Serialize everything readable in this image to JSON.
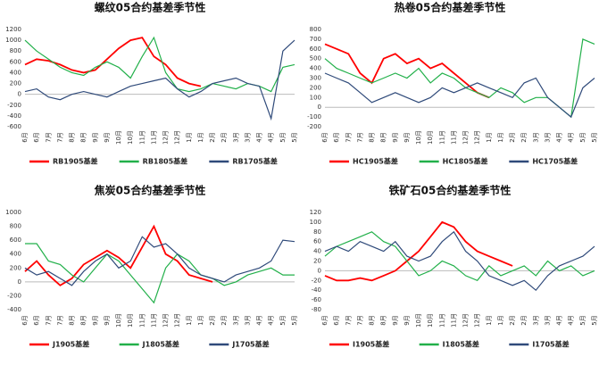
{
  "chart_data": [
    {
      "type": "line",
      "title": "螺纹05合约基差季节性",
      "categories": [
        "6月",
        "6月",
        "7月",
        "7月",
        "8月",
        "8月",
        "9月",
        "9月",
        "10月",
        "10月",
        "11月",
        "11月",
        "12月",
        "12月",
        "1月",
        "1月",
        "2月",
        "2月",
        "3月",
        "3月",
        "4月",
        "4月",
        "5月",
        "5月"
      ],
      "ylim": [
        -600,
        1200
      ],
      "yticks": [
        -600,
        -400,
        -200,
        0,
        200,
        400,
        600,
        800,
        1000,
        1200
      ],
      "series": [
        {
          "name": "RB1905基差",
          "color": "#ff0000",
          "values": [
            550,
            650,
            620,
            550,
            450,
            400,
            450,
            650,
            850,
            1000,
            1050,
            700,
            550,
            300,
            200,
            150,
            null,
            null,
            null,
            null,
            null,
            null,
            null,
            null
          ]
        },
        {
          "name": "RB1805基差",
          "color": "#22b04a",
          "values": [
            1000,
            800,
            650,
            500,
            400,
            350,
            500,
            600,
            500,
            300,
            700,
            1050,
            400,
            100,
            50,
            100,
            200,
            150,
            100,
            200,
            150,
            50,
            500,
            550
          ]
        },
        {
          "name": "RB1705基差",
          "color": "#2f4a7a",
          "values": [
            50,
            100,
            -50,
            -100,
            0,
            50,
            0,
            -50,
            50,
            150,
            200,
            250,
            300,
            100,
            -50,
            50,
            200,
            250,
            300,
            200,
            150,
            -450,
            800,
            1000
          ]
        }
      ]
    },
    {
      "type": "line",
      "title": "热卷05合约基差季节性",
      "categories": [
        "6月",
        "6月",
        "7月",
        "7月",
        "8月",
        "8月",
        "9月",
        "9月",
        "10月",
        "10月",
        "11月",
        "11月",
        "12月",
        "12月",
        "1月",
        "1月",
        "2月",
        "2月",
        "3月",
        "3月",
        "4月",
        "4月",
        "5月",
        "5月"
      ],
      "ylim": [
        -200,
        800
      ],
      "yticks": [
        -200,
        -100,
        0,
        100,
        200,
        300,
        400,
        500,
        600,
        700,
        800
      ],
      "series": [
        {
          "name": "HC1905基差",
          "color": "#ff0000",
          "values": [
            650,
            600,
            550,
            350,
            250,
            500,
            550,
            450,
            500,
            400,
            450,
            350,
            250,
            150,
            100,
            null,
            null,
            null,
            null,
            null,
            null,
            null,
            null,
            null
          ]
        },
        {
          "name": "HC1805基差",
          "color": "#22b04a",
          "values": [
            500,
            400,
            350,
            300,
            250,
            300,
            350,
            300,
            400,
            250,
            350,
            300,
            200,
            150,
            100,
            200,
            150,
            50,
            100,
            100,
            0,
            -100,
            700,
            650
          ]
        },
        {
          "name": "HC1705基差",
          "color": "#2f4a7a",
          "values": [
            350,
            300,
            250,
            150,
            50,
            100,
            150,
            100,
            50,
            100,
            200,
            150,
            200,
            250,
            200,
            150,
            100,
            250,
            300,
            100,
            0,
            -100,
            200,
            300
          ]
        }
      ]
    },
    {
      "type": "line",
      "title": "焦炭05合约基差季节性",
      "categories": [
        "6月",
        "6月",
        "7月",
        "7月",
        "8月",
        "8月",
        "9月",
        "9月",
        "10月",
        "10月",
        "11月",
        "11月",
        "12月",
        "12月",
        "1月",
        "1月",
        "2月",
        "2月",
        "3月",
        "3月",
        "4月",
        "4月",
        "5月",
        "5月"
      ],
      "ylim": [
        -400,
        1000
      ],
      "yticks": [
        -400,
        -200,
        0,
        200,
        400,
        600,
        800,
        1000
      ],
      "series": [
        {
          "name": "J1905基差",
          "color": "#ff0000",
          "values": [
            150,
            300,
            100,
            -50,
            50,
            250,
            350,
            450,
            350,
            200,
            500,
            800,
            400,
            300,
            100,
            50,
            0,
            null,
            null,
            null,
            null,
            null,
            null,
            null
          ]
        },
        {
          "name": "J1805基差",
          "color": "#22b04a",
          "values": [
            550,
            550,
            300,
            250,
            100,
            0,
            200,
            400,
            300,
            100,
            -100,
            -300,
            200,
            400,
            300,
            100,
            50,
            -50,
            0,
            100,
            150,
            200,
            100,
            100
          ]
        },
        {
          "name": "J1705基差",
          "color": "#2f4a7a",
          "values": [
            200,
            100,
            150,
            50,
            -50,
            150,
            300,
            400,
            200,
            300,
            650,
            500,
            550,
            400,
            200,
            100,
            50,
            0,
            100,
            150,
            200,
            300,
            600,
            580
          ]
        }
      ]
    },
    {
      "type": "line",
      "title": "铁矿石05合约基差季节性",
      "categories": [
        "6月",
        "6月",
        "7月",
        "7月",
        "8月",
        "8月",
        "9月",
        "9月",
        "10月",
        "10月",
        "11月",
        "11月",
        "12月",
        "12月",
        "1月",
        "1月",
        "2月",
        "2月",
        "3月",
        "3月",
        "4月",
        "4月",
        "5月",
        "5月"
      ],
      "ylim": [
        -80,
        120
      ],
      "yticks": [
        -80,
        -60,
        -40,
        -20,
        0,
        20,
        40,
        60,
        80,
        100,
        120
      ],
      "series": [
        {
          "name": "I1905基差",
          "color": "#ff0000",
          "values": [
            -10,
            -20,
            -20,
            -15,
            -20,
            -10,
            0,
            20,
            40,
            70,
            100,
            90,
            60,
            40,
            30,
            20,
            10,
            null,
            null,
            null,
            null,
            null,
            null,
            null
          ]
        },
        {
          "name": "I1805基差",
          "color": "#22b04a",
          "values": [
            30,
            50,
            60,
            70,
            80,
            60,
            50,
            20,
            -10,
            0,
            20,
            10,
            -10,
            -20,
            10,
            -10,
            0,
            10,
            -10,
            20,
            0,
            10,
            -10,
            0
          ]
        },
        {
          "name": "I1705基差",
          "color": "#2f4a7a",
          "values": [
            40,
            50,
            40,
            60,
            50,
            40,
            60,
            30,
            20,
            30,
            60,
            80,
            40,
            20,
            -10,
            -20,
            -30,
            -20,
            -40,
            -10,
            10,
            20,
            30,
            50
          ]
        }
      ]
    }
  ]
}
